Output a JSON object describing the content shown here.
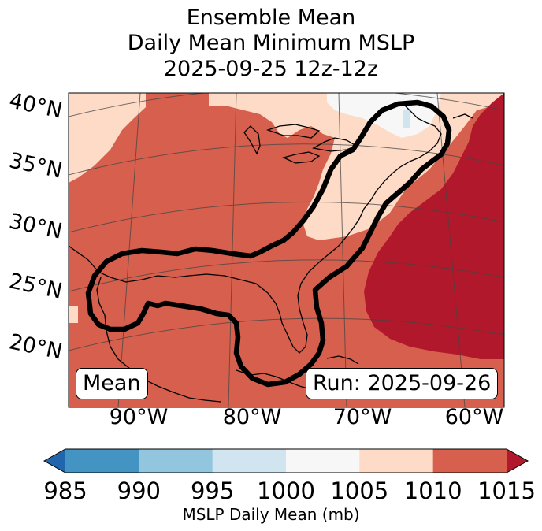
{
  "title": {
    "line1": "Ensemble Mean",
    "line2": "Daily Mean Minimum MSLP",
    "line3": "2025-09-25 12z-12z"
  },
  "lat_labels": [
    "40°N",
    "35°N",
    "30°N",
    "25°N",
    "20°N"
  ],
  "lon_labels": [
    "90°W",
    "80°W",
    "70°W",
    "60°W"
  ],
  "badges": {
    "left": "Mean",
    "right": "Run: 2025-09-26"
  },
  "colorbar": {
    "title": "MSLP Daily Mean (mb)",
    "ticks": [
      "985",
      "990",
      "995",
      "1000",
      "1005",
      "1010",
      "1015"
    ],
    "colors": [
      "#2166ac",
      "#4393c3",
      "#92c5de",
      "#d1e5f0",
      "#f7f7f7",
      "#fddbc7",
      "#d6604d",
      "#b2182b"
    ]
  },
  "field_colors": {
    "background": "#d6604d",
    "ne_band": "#fddbc7",
    "white_area": "#f7f7f7",
    "atlantic_high": "#b2182b",
    "outline": "#000000"
  }
}
